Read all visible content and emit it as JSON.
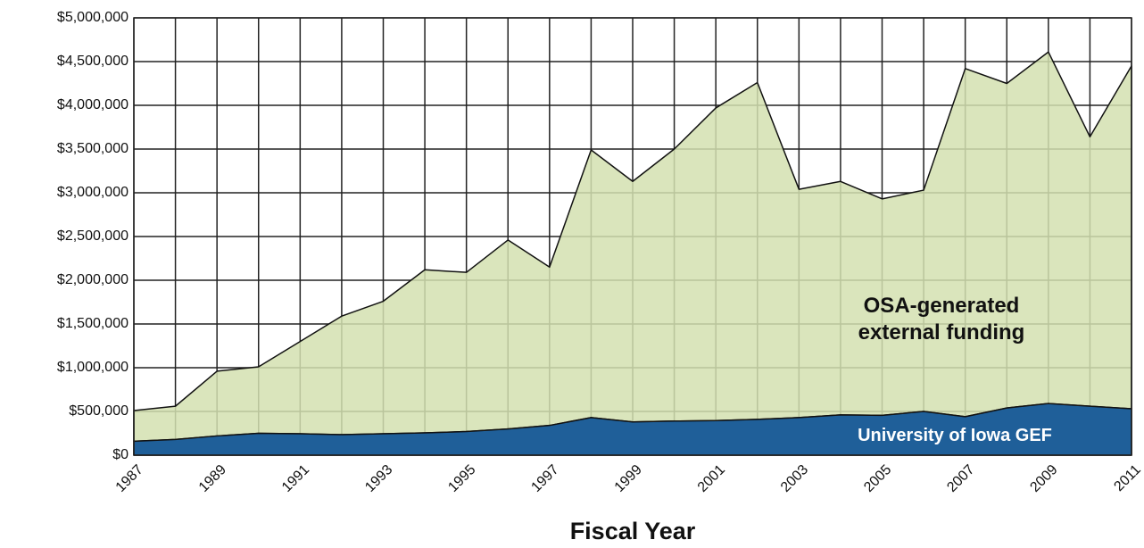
{
  "chart_data": {
    "type": "stacked_area",
    "x_label": "Fiscal Year",
    "x": [
      1987,
      1988,
      1989,
      1990,
      1991,
      1992,
      1993,
      1994,
      1995,
      1996,
      1997,
      1998,
      1999,
      2000,
      2001,
      2002,
      2003,
      2004,
      2005,
      2006,
      2007,
      2008,
      2009,
      2010,
      2011
    ],
    "xlim": [
      1987,
      2011
    ],
    "xticks": [
      1987,
      1989,
      1991,
      1993,
      1995,
      1997,
      1999,
      2001,
      2003,
      2005,
      2007,
      2009,
      2011
    ],
    "ylim": [
      0,
      5000000
    ],
    "yticks": [
      {
        "value": 0,
        "label": "$0"
      },
      {
        "value": 500000,
        "label": "$500,000"
      },
      {
        "value": 1000000,
        "label": "$1,000,000"
      },
      {
        "value": 1500000,
        "label": "$1,500,000"
      },
      {
        "value": 2000000,
        "label": "$2,000,000"
      },
      {
        "value": 2500000,
        "label": "$2,500,000"
      },
      {
        "value": 3000000,
        "label": "$3,000,000"
      },
      {
        "value": 3500000,
        "label": "$3,500,000"
      },
      {
        "value": 4000000,
        "label": "$4,000,000"
      },
      {
        "value": 4500000,
        "label": "$4,500,000"
      },
      {
        "value": 5000000,
        "label": "$5,000,000"
      }
    ],
    "grid": true,
    "series": [
      {
        "name": "University of Iowa GEF",
        "color": "#1f5f99",
        "values": [
          160000,
          180000,
          220000,
          250000,
          245000,
          235000,
          245000,
          255000,
          270000,
          300000,
          340000,
          430000,
          380000,
          390000,
          395000,
          410000,
          430000,
          460000,
          455000,
          500000,
          440000,
          540000,
          590000,
          560000,
          530000
        ]
      },
      {
        "name": "OSA-generated external funding",
        "color": "#d3e0b0",
        "values": [
          350000,
          380000,
          740000,
          760000,
          1055000,
          1355000,
          1515000,
          1865000,
          1820000,
          2160000,
          1810000,
          3060000,
          2750000,
          3110000,
          3575000,
          3850000,
          2610000,
          2670000,
          2475000,
          2530000,
          3980000,
          3710000,
          4020000,
          3080000,
          3920000
        ]
      }
    ]
  }
}
